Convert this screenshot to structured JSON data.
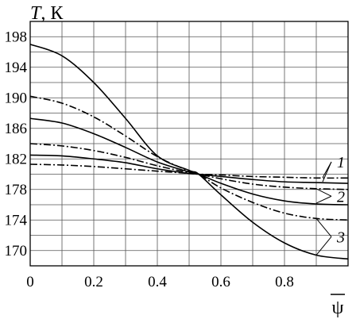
{
  "chart_data": {
    "type": "line",
    "title": "",
    "ylabel": {
      "symbol": "T",
      "rest": ", К"
    },
    "xlabel": "ψ",
    "xlim": [
      0,
      1.0
    ],
    "ylim": [
      168,
      200
    ],
    "x_ticks": [
      0,
      0.1,
      0.2,
      0.3,
      0.4,
      0.5,
      0.6,
      0.7,
      0.8,
      0.9,
      1.0
    ],
    "x_tick_labels": [
      {
        "x": 0,
        "text": "0"
      },
      {
        "x": 0.2,
        "text": "0.2"
      },
      {
        "x": 0.4,
        "text": "0.4"
      },
      {
        "x": 0.6,
        "text": "0.6"
      },
      {
        "x": 0.8,
        "text": "0.8"
      }
    ],
    "y_ticks": [
      168,
      170,
      172,
      174,
      176,
      178,
      180,
      182,
      184,
      186,
      188,
      190,
      192,
      194,
      196,
      198,
      200
    ],
    "y_tick_labels": [
      {
        "y": 170,
        "text": "170"
      },
      {
        "y": 174,
        "text": "174"
      },
      {
        "y": 178,
        "text": "178"
      },
      {
        "y": 182,
        "text": "182"
      },
      {
        "y": 186,
        "text": "186"
      },
      {
        "y": 190,
        "text": "190"
      },
      {
        "y": 194,
        "text": "194"
      },
      {
        "y": 198,
        "text": "198"
      }
    ],
    "grid": true,
    "x": [
      0,
      0.1,
      0.2,
      0.3,
      0.4,
      0.5,
      0.53,
      0.6,
      0.7,
      0.8,
      0.9,
      1.0
    ],
    "series": [
      {
        "style": "solid",
        "values": [
          197.0,
          195.5,
          192.0,
          187.3,
          182.4,
          180.5,
          180.0,
          177.3,
          173.7,
          171.0,
          169.4,
          168.9
        ]
      },
      {
        "style": "dash-dot",
        "values": [
          190.2,
          189.3,
          187.5,
          185.0,
          182.3,
          180.4,
          180.0,
          178.2,
          176.3,
          174.9,
          174.2,
          174.0
        ]
      },
      {
        "style": "solid",
        "values": [
          187.3,
          186.7,
          185.3,
          183.5,
          181.6,
          180.3,
          180.0,
          178.8,
          177.4,
          176.5,
          176.1,
          176.0
        ]
      },
      {
        "style": "dash-dot",
        "values": [
          184.0,
          183.7,
          183.1,
          182.2,
          181.1,
          180.2,
          180.0,
          179.4,
          178.7,
          178.3,
          178.1,
          178.0
        ]
      },
      {
        "style": "solid",
        "values": [
          182.5,
          182.4,
          182.0,
          181.5,
          180.7,
          180.1,
          180.0,
          179.7,
          179.3,
          179.0,
          178.9,
          178.8
        ]
      },
      {
        "style": "dash-dot",
        "values": [
          181.3,
          181.2,
          181.0,
          180.7,
          180.4,
          180.1,
          180.0,
          179.9,
          179.7,
          179.6,
          179.5,
          179.5
        ]
      }
    ],
    "annotations": [
      {
        "text": "1",
        "x": 0.965,
        "y": 181.2,
        "points_to": [
          [
            0.92,
            179.55
          ],
          [
            0.92,
            179.0
          ]
        ]
      },
      {
        "text": "2",
        "x": 0.965,
        "y": 176.7,
        "points_to": [
          [
            0.9,
            178.1
          ],
          [
            0.9,
            176.2
          ]
        ]
      },
      {
        "text": "3",
        "x": 0.965,
        "y": 171.4,
        "points_to": [
          [
            0.9,
            174.2
          ],
          [
            0.9,
            169.4
          ]
        ]
      }
    ]
  }
}
